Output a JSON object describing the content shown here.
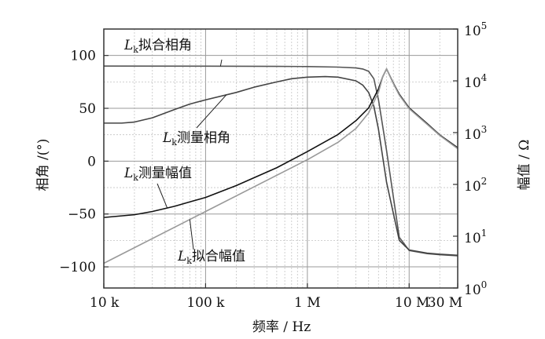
{
  "chart_data": {
    "type": "line",
    "x_axis": {
      "label": "频率 / Hz",
      "scale": "log",
      "range": [
        10000,
        30000000
      ],
      "tick_values": [
        10000,
        100000,
        1000000,
        10000000,
        30000000
      ],
      "tick_labels": [
        "10 k",
        "100 k",
        "1 M",
        "10 M",
        "30 M"
      ]
    },
    "y_axis_left": {
      "label": "相角 /(°)",
      "range": [
        -120,
        125
      ],
      "tick_values": [
        -100,
        -50,
        0,
        50,
        100
      ],
      "tick_labels": [
        "−100",
        "−50",
        "0",
        "50",
        "100"
      ]
    },
    "y_axis_right": {
      "label": "幅值 / Ω",
      "scale": "log",
      "range": [
        1,
        100000
      ],
      "tick_values": [
        1,
        10,
        100,
        1000,
        10000,
        100000
      ],
      "tick_labels": [
        {
          "base": "10",
          "exp": "0"
        },
        {
          "base": "10",
          "exp": "1"
        },
        {
          "base": "10",
          "exp": "2"
        },
        {
          "base": "10",
          "exp": "3"
        },
        {
          "base": "10",
          "exp": "4"
        },
        {
          "base": "10",
          "exp": "5"
        }
      ]
    },
    "grid": true,
    "series": [
      {
        "name": "Lk拟合相角",
        "axis": "left",
        "color": "#555555",
        "x": [
          10000,
          100000,
          500000,
          1000000,
          2000000,
          3000000,
          3500000,
          4000000,
          4500000,
          5000000,
          6000000,
          8000000,
          10000000,
          15000000,
          20000000,
          30000000
        ],
        "y": [
          90,
          89.9,
          89.7,
          89.5,
          89,
          88.2,
          87.2,
          85,
          78,
          58,
          10,
          -72,
          -84.5,
          -87.5,
          -88.5,
          -89.5
        ]
      },
      {
        "name": "Lk测量相角",
        "axis": "left",
        "color": "#444444",
        "x": [
          10000,
          15000,
          20000,
          30000,
          50000,
          70000,
          100000,
          200000,
          300000,
          500000,
          700000,
          1000000,
          1500000,
          2000000,
          3000000,
          3500000,
          4000000,
          4500000,
          5000000,
          6000000,
          8000000,
          10000000,
          15000000,
          20000000,
          30000000
        ],
        "y": [
          36,
          36,
          37,
          41,
          49,
          54,
          58,
          65,
          70,
          75,
          78,
          79.5,
          80,
          79.5,
          76,
          72,
          65,
          52,
          30,
          -20,
          -75,
          -84,
          -87,
          -88,
          -89
        ]
      },
      {
        "name": "Lk测量幅值",
        "axis": "right",
        "color": "#111111",
        "x": [
          10000,
          20000,
          30000,
          50000,
          70000,
          100000,
          200000,
          500000,
          1000000,
          2000000,
          3000000,
          4000000,
          5000000,
          5500000,
          6000000,
          7000000,
          8000000,
          10000000,
          15000000,
          20000000,
          30000000
        ],
        "y": [
          23,
          26,
          30,
          38,
          46,
          56,
          95,
          210,
          430,
          920,
          1700,
          3000,
          7000,
          12000,
          17000,
          9000,
          5500,
          3000,
          1500,
          900,
          510
        ]
      },
      {
        "name": "Lk拟合幅值",
        "axis": "right",
        "color": "#999999",
        "x": [
          10000,
          100000,
          1000000,
          2000000,
          3000000,
          4000000,
          5000000,
          5500000,
          6000000,
          7000000,
          8000000,
          10000000,
          15000000,
          20000000,
          30000000
        ],
        "y": [
          3,
          30,
          300,
          650,
          1200,
          2400,
          6000,
          12000,
          17000,
          8800,
          5300,
          2900,
          1450,
          880,
          490
        ]
      }
    ],
    "annotations": [
      {
        "text": "拟合相角",
        "prefix": "L",
        "subscript": "k",
        "series": "Lk拟合相角"
      },
      {
        "text": "测量相角",
        "prefix": "L",
        "subscript": "k",
        "series": "Lk测量相角"
      },
      {
        "text": "测量幅值",
        "prefix": "L",
        "subscript": "k",
        "series": "Lk测量幅值"
      },
      {
        "text": "拟合幅值",
        "prefix": "L",
        "subscript": "k",
        "series": "Lk拟合幅值"
      }
    ]
  }
}
